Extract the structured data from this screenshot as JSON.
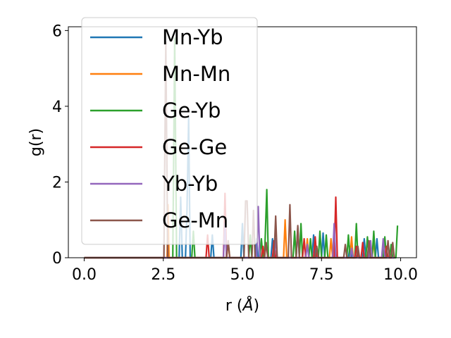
{
  "chart_data": {
    "type": "line",
    "xlabel_main": "r (",
    "xlabel_unit": "Å",
    "xlabel_tail": ")",
    "ylabel": "g(r)",
    "xlim": [
      -0.5,
      10.5
    ],
    "ylim": [
      0,
      6.1
    ],
    "xticks": [
      0.0,
      2.5,
      5.0,
      7.5,
      10.0
    ],
    "xtick_labels": [
      "0.0",
      "2.5",
      "5.0",
      "7.5",
      "10.0"
    ],
    "yticks": [
      0,
      2,
      4,
      6
    ],
    "ytick_labels": [
      "0",
      "2",
      "4",
      "6"
    ],
    "grid": false,
    "legend_position": "upper-left",
    "series": [
      {
        "name": "Mn-Yb",
        "color": "#1f77b4",
        "points": [
          [
            0,
            0
          ],
          [
            3.0,
            0
          ],
          [
            3.05,
            1.6
          ],
          [
            3.1,
            0
          ],
          [
            3.2,
            0
          ],
          [
            3.25,
            1.3
          ],
          [
            3.3,
            3.7
          ],
          [
            3.35,
            0
          ],
          [
            4.0,
            0
          ],
          [
            4.05,
            0.6
          ],
          [
            4.1,
            0
          ],
          [
            4.95,
            0
          ],
          [
            5.0,
            0.9
          ],
          [
            5.05,
            0
          ],
          [
            5.4,
            0
          ],
          [
            5.45,
            0.5
          ],
          [
            5.5,
            0
          ],
          [
            5.9,
            0
          ],
          [
            5.95,
            0.5
          ],
          [
            6.0,
            0
          ],
          [
            6.7,
            0
          ],
          [
            6.75,
            0.8
          ],
          [
            6.8,
            0
          ],
          [
            7.2,
            0
          ],
          [
            7.25,
            0.6
          ],
          [
            7.3,
            0
          ],
          [
            7.5,
            0
          ],
          [
            7.55,
            0.65
          ],
          [
            7.6,
            0
          ],
          [
            8.35,
            0
          ],
          [
            8.4,
            0.3
          ],
          [
            8.45,
            0
          ],
          [
            8.8,
            0
          ],
          [
            8.85,
            0.5
          ],
          [
            8.9,
            0
          ],
          [
            9.2,
            0
          ],
          [
            9.25,
            0.5
          ],
          [
            9.3,
            0
          ],
          [
            9.8,
            0
          ]
        ]
      },
      {
        "name": "Mn-Mn",
        "color": "#ff7f0e",
        "points": [
          [
            0,
            0
          ],
          [
            2.62,
            0
          ],
          [
            2.65,
            1.4
          ],
          [
            2.68,
            0
          ],
          [
            4.5,
            0
          ],
          [
            4.55,
            0.4
          ],
          [
            4.6,
            0
          ],
          [
            6.3,
            0
          ],
          [
            6.35,
            1.0
          ],
          [
            6.4,
            0
          ],
          [
            7.0,
            0
          ],
          [
            7.05,
            0.5
          ],
          [
            7.1,
            0
          ],
          [
            7.75,
            0
          ],
          [
            7.8,
            0.5
          ],
          [
            7.85,
            0
          ],
          [
            8.4,
            0
          ],
          [
            8.45,
            0.55
          ],
          [
            8.5,
            0
          ],
          [
            9.1,
            0
          ],
          [
            9.15,
            0.45
          ],
          [
            9.2,
            0
          ],
          [
            9.8,
            0
          ]
        ]
      },
      {
        "name": "Ge-Yb",
        "color": "#2ca02c",
        "points": [
          [
            0,
            0
          ],
          [
            2.8,
            0
          ],
          [
            2.86,
            5.8
          ],
          [
            2.92,
            0
          ],
          [
            3.4,
            0
          ],
          [
            3.45,
            0.7
          ],
          [
            3.5,
            0
          ],
          [
            5.2,
            0
          ],
          [
            5.25,
            0.6
          ],
          [
            5.3,
            0
          ],
          [
            5.55,
            0
          ],
          [
            5.6,
            0.5
          ],
          [
            5.65,
            0
          ],
          [
            5.7,
            0
          ],
          [
            5.77,
            1.8
          ],
          [
            5.82,
            0
          ],
          [
            6.6,
            0
          ],
          [
            6.65,
            0.7
          ],
          [
            6.7,
            0
          ],
          [
            6.8,
            0
          ],
          [
            6.85,
            0.9
          ],
          [
            6.9,
            0
          ],
          [
            7.1,
            0
          ],
          [
            7.15,
            0.5
          ],
          [
            7.2,
            0
          ],
          [
            7.4,
            0
          ],
          [
            7.45,
            0.7
          ],
          [
            7.5,
            0
          ],
          [
            7.6,
            0
          ],
          [
            7.65,
            0.6
          ],
          [
            7.7,
            0
          ],
          [
            8.3,
            0
          ],
          [
            8.35,
            0.6
          ],
          [
            8.4,
            0
          ],
          [
            8.55,
            0
          ],
          [
            8.6,
            0.9
          ],
          [
            8.65,
            0
          ],
          [
            8.9,
            0
          ],
          [
            8.95,
            0.55
          ],
          [
            9.0,
            0
          ],
          [
            9.1,
            0
          ],
          [
            9.15,
            0.7
          ],
          [
            9.2,
            0
          ],
          [
            9.45,
            0
          ],
          [
            9.5,
            0.55
          ],
          [
            9.55,
            0
          ],
          [
            9.65,
            0
          ],
          [
            9.7,
            0.35
          ],
          [
            9.75,
            0
          ],
          [
            9.85,
            0
          ],
          [
            9.9,
            0.85
          ]
        ]
      },
      {
        "name": "Ge-Ge",
        "color": "#d62728",
        "points": [
          [
            0,
            0
          ],
          [
            3.85,
            0
          ],
          [
            3.9,
            0.6
          ],
          [
            3.95,
            0
          ],
          [
            4.4,
            0
          ],
          [
            4.45,
            1.7
          ],
          [
            4.5,
            0
          ],
          [
            5.6,
            0
          ],
          [
            5.65,
            0.3
          ],
          [
            5.7,
            0
          ],
          [
            5.95,
            0
          ],
          [
            6.0,
            0.45
          ],
          [
            6.05,
            0
          ],
          [
            6.9,
            0
          ],
          [
            6.95,
            0.5
          ],
          [
            7.0,
            0
          ],
          [
            7.25,
            0
          ],
          [
            7.3,
            0.55
          ],
          [
            7.35,
            0
          ],
          [
            7.9,
            0
          ],
          [
            7.95,
            1.6
          ],
          [
            8.0,
            0
          ],
          [
            8.55,
            0
          ],
          [
            8.6,
            0.3
          ],
          [
            8.65,
            0
          ],
          [
            8.75,
            0
          ],
          [
            8.8,
            0.4
          ],
          [
            8.85,
            0
          ],
          [
            9.5,
            0
          ],
          [
            9.55,
            0.3
          ],
          [
            9.6,
            0
          ],
          [
            9.8,
            0
          ]
        ]
      },
      {
        "name": "Yb-Yb",
        "color": "#9467bd",
        "points": [
          [
            0,
            0
          ],
          [
            4.4,
            0
          ],
          [
            4.45,
            0.9
          ],
          [
            4.5,
            0
          ],
          [
            5.45,
            0
          ],
          [
            5.5,
            1.35
          ],
          [
            5.55,
            0
          ],
          [
            6.0,
            0
          ],
          [
            6.05,
            0.5
          ],
          [
            6.1,
            0
          ],
          [
            7.0,
            0
          ],
          [
            7.05,
            0.35
          ],
          [
            7.1,
            0
          ],
          [
            7.85,
            0
          ],
          [
            7.9,
            0.9
          ],
          [
            7.95,
            0
          ],
          [
            8.4,
            0
          ],
          [
            8.45,
            0.25
          ],
          [
            8.5,
            0
          ],
          [
            9.0,
            0
          ],
          [
            9.05,
            0.45
          ],
          [
            9.1,
            0
          ],
          [
            9.4,
            0
          ],
          [
            9.45,
            0.5
          ],
          [
            9.5,
            0
          ],
          [
            9.8,
            0
          ]
        ]
      },
      {
        "name": "Ge-Mn",
        "color": "#8c564b",
        "points": [
          [
            0,
            0
          ],
          [
            2.52,
            0
          ],
          [
            2.58,
            5.7
          ],
          [
            2.64,
            0
          ],
          [
            4.5,
            0
          ],
          [
            4.55,
            0.45
          ],
          [
            4.6,
            0
          ],
          [
            5.05,
            0
          ],
          [
            5.1,
            1.5
          ],
          [
            5.15,
            1.5
          ],
          [
            5.2,
            0
          ],
          [
            5.3,
            0
          ],
          [
            5.35,
            1.25
          ],
          [
            5.4,
            0
          ],
          [
            5.7,
            0
          ],
          [
            5.75,
            0.4
          ],
          [
            5.8,
            0
          ],
          [
            6.0,
            0
          ],
          [
            6.05,
            1.1
          ],
          [
            6.1,
            0
          ],
          [
            6.45,
            0
          ],
          [
            6.5,
            1.4
          ],
          [
            6.55,
            0
          ],
          [
            6.7,
            0
          ],
          [
            6.75,
            0.85
          ],
          [
            6.8,
            0
          ],
          [
            7.3,
            0
          ],
          [
            7.35,
            0.3
          ],
          [
            7.4,
            0
          ],
          [
            8.2,
            0
          ],
          [
            8.25,
            0.35
          ],
          [
            8.3,
            0
          ],
          [
            8.6,
            0
          ],
          [
            8.65,
            0.3
          ],
          [
            8.7,
            0
          ],
          [
            8.95,
            0
          ],
          [
            9.0,
            0.45
          ],
          [
            9.05,
            0
          ],
          [
            9.55,
            0
          ],
          [
            9.6,
            0.45
          ],
          [
            9.65,
            0
          ],
          [
            9.7,
            0
          ],
          [
            9.75,
            0.4
          ],
          [
            9.8,
            0
          ]
        ]
      }
    ]
  }
}
